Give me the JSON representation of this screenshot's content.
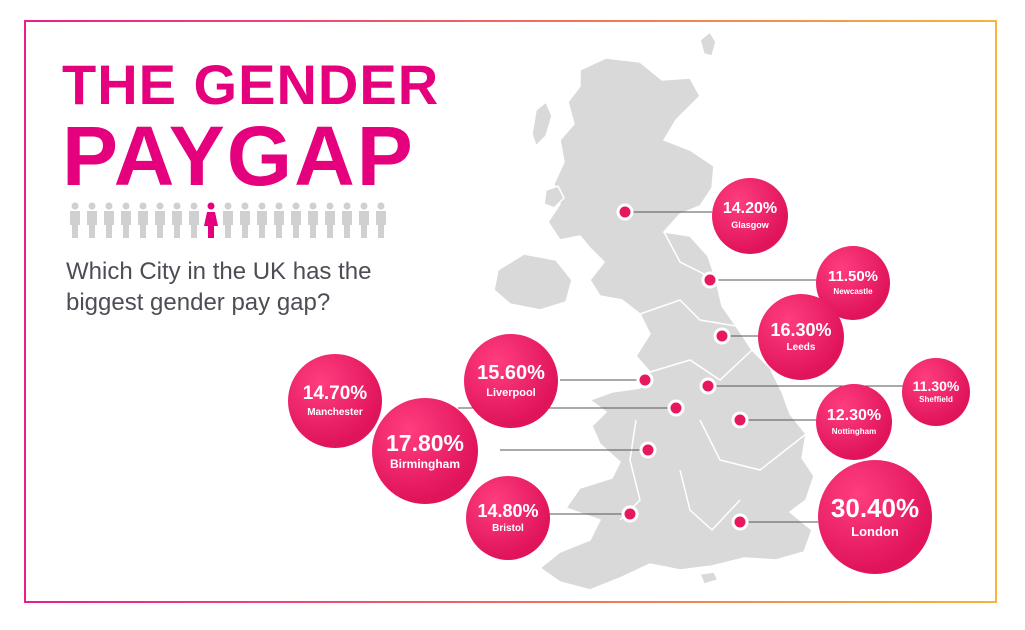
{
  "title": {
    "line1": "THE GENDER",
    "line2": "PAYGAP"
  },
  "question": "Which City in the UK has the biggest gender pay gap?",
  "colors": {
    "accent": "#e5007d",
    "map": "#d9d9d9",
    "bubble": "#e8185f",
    "text": "#4d4d55"
  },
  "icons": {
    "people_row": "person-icon",
    "highlight": "female-person-icon"
  },
  "cities": [
    {
      "id": "glasgow",
      "value": "14.20%",
      "label": "Glasgow"
    },
    {
      "id": "newcastle",
      "value": "11.50%",
      "label": "Newcastle"
    },
    {
      "id": "leeds",
      "value": "16.30%",
      "label": "Leeds"
    },
    {
      "id": "liverpool",
      "value": "15.60%",
      "label": "Liverpool"
    },
    {
      "id": "manchester",
      "value": "14.70%",
      "label": "Manchester"
    },
    {
      "id": "sheffield",
      "value": "11.30%",
      "label": "Sheffield"
    },
    {
      "id": "nottingham",
      "value": "12.30%",
      "label": "Nottingham"
    },
    {
      "id": "birmingham",
      "value": "17.80%",
      "label": "Birmingham"
    },
    {
      "id": "bristol",
      "value": "14.80%",
      "label": "Bristol"
    },
    {
      "id": "london",
      "value": "30.40%",
      "label": "London"
    }
  ]
}
